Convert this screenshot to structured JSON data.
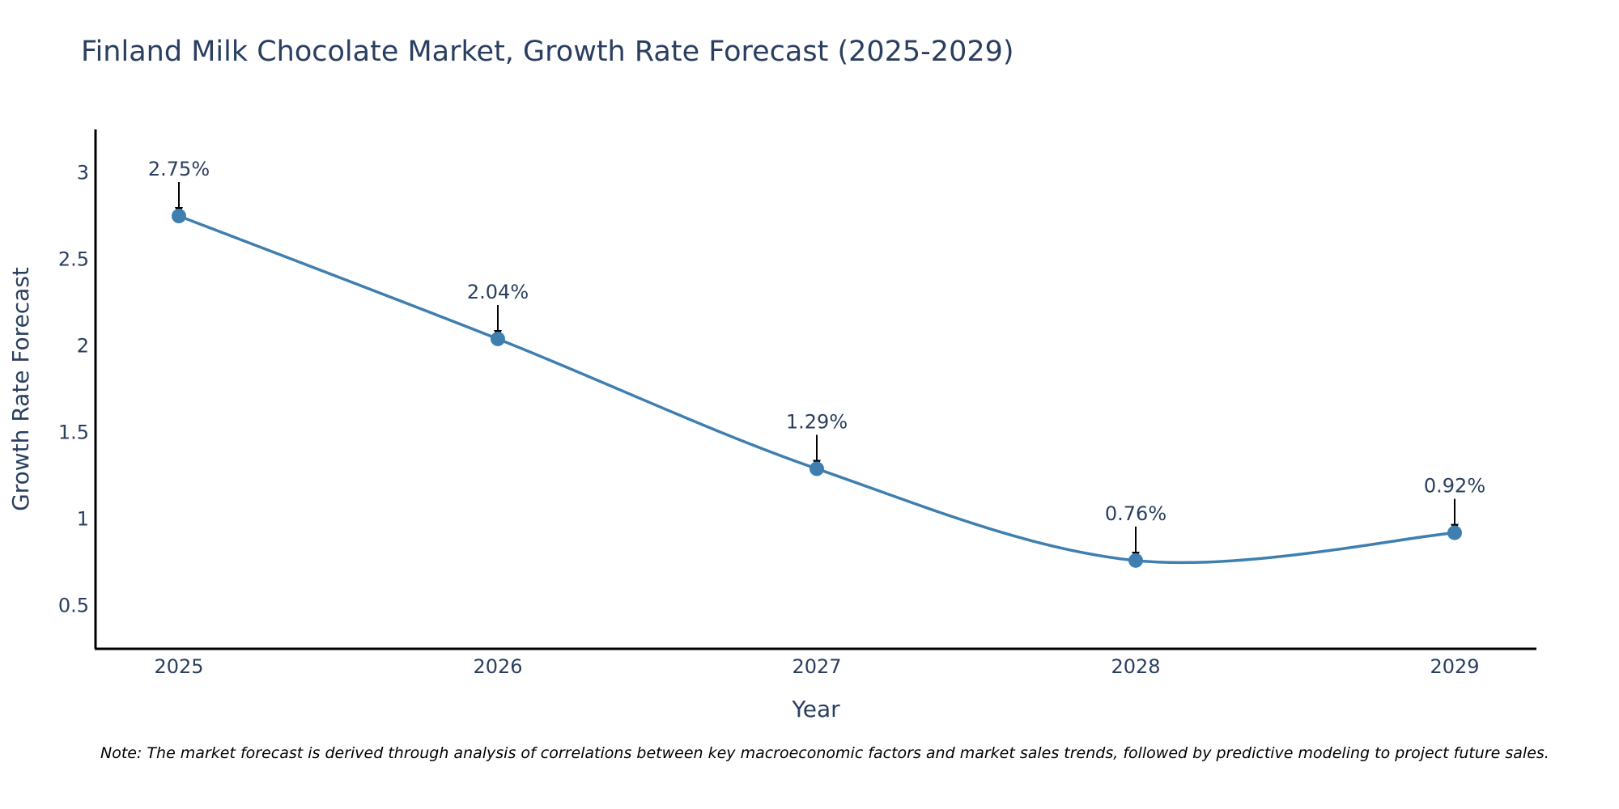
{
  "chart_data": {
    "type": "line",
    "title": "Finland Milk Chocolate Market, Growth Rate Forecast (2025-2029)",
    "xlabel": "Year",
    "ylabel": "Growth Rate Forecast",
    "categories": [
      "2025",
      "2026",
      "2027",
      "2028",
      "2029"
    ],
    "values": [
      2.75,
      2.04,
      1.29,
      0.76,
      0.92
    ],
    "data_labels": [
      "2.75%",
      "2.04%",
      "1.29%",
      "0.76%",
      "0.92%"
    ],
    "y_ticks": [
      0.5,
      1,
      1.5,
      2,
      2.5,
      3
    ],
    "y_tick_labels": [
      "0.5",
      "1",
      "1.5",
      "2",
      "2.5",
      "3"
    ],
    "ylim": [
      0.25,
      3.25
    ],
    "grid": false,
    "line_shape": "spline",
    "series_color": "#3f7fb0",
    "annotation_arrow_color": "#000000",
    "note": "Note: The market forecast is derived through analysis of correlations between key macroeconomic factors and market sales trends, followed by predictive modeling to project future sales."
  }
}
